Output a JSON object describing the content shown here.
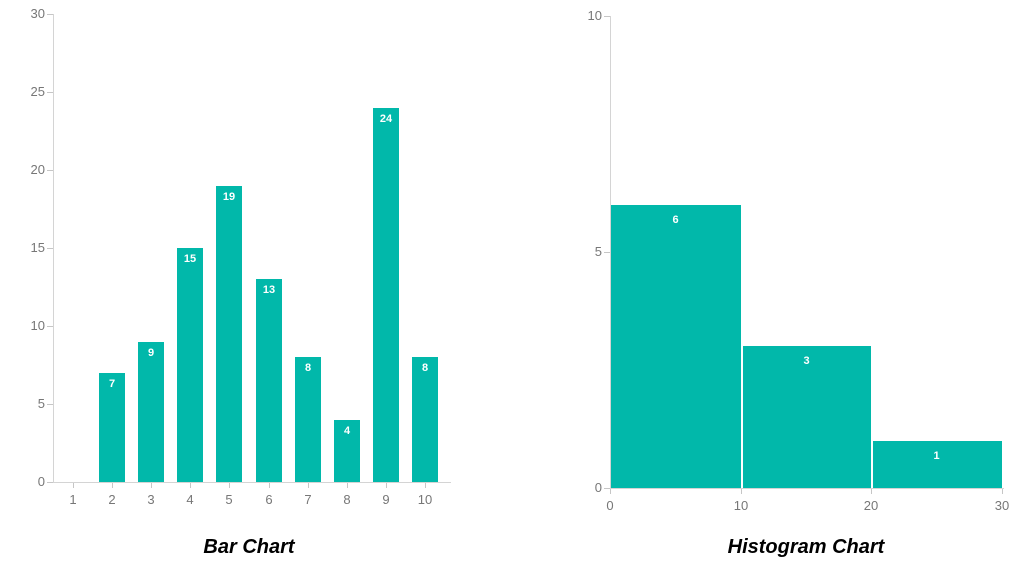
{
  "page": {
    "background": "#FFFFFF",
    "accent_color": "#01B8AA"
  },
  "chart_data": [
    {
      "type": "bar",
      "title": "Bar Chart",
      "categories": [
        "1",
        "2",
        "3",
        "4",
        "5",
        "6",
        "7",
        "8",
        "9",
        "10"
      ],
      "values": [
        null,
        7,
        9,
        15,
        19,
        13,
        8,
        4,
        24,
        8
      ],
      "xlabel": "",
      "ylabel": "",
      "ylim": [
        0,
        30
      ],
      "yticks": [
        0,
        5,
        10,
        15,
        20,
        25,
        30
      ],
      "grid": false,
      "legend": "none",
      "data_labels": "inside-top",
      "bar_color": "#01B8AA",
      "data_label_color": "#FFFFFF",
      "axis_text_color": "#777777",
      "axis_line_color": "#D4D4D4",
      "title_color": "#000000"
    },
    {
      "type": "bar",
      "subtype": "histogram",
      "title": "Histogram Chart",
      "bin_edges": [
        0,
        10,
        20,
        30
      ],
      "counts": [
        6,
        3,
        1
      ],
      "xticks": [
        "0",
        "10",
        "20",
        "30"
      ],
      "xlim": [
        0,
        30
      ],
      "xlabel": "",
      "ylabel": "",
      "ylim": [
        0,
        10
      ],
      "yticks": [
        0,
        5,
        10
      ],
      "grid": false,
      "legend": "none",
      "data_labels": "inside-top",
      "bar_color": "#01B8AA",
      "bar_separator_color": "#FFFFFF",
      "data_label_color": "#FFFFFF",
      "axis_text_color": "#777777",
      "axis_line_color": "#D4D4D4",
      "title_color": "#000000"
    }
  ]
}
